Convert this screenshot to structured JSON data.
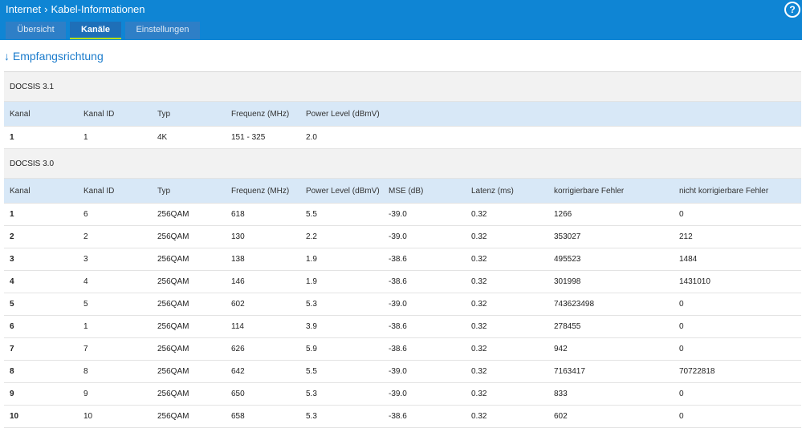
{
  "header": {
    "crumb_root": "Internet",
    "crumb_page": "Kabel-Informationen",
    "help_label": "?"
  },
  "tabs": [
    {
      "label": "Übersicht"
    },
    {
      "label": "Kanäle"
    },
    {
      "label": "Einstellungen"
    }
  ],
  "section_title": "↓ Empfangsrichtung",
  "docsis31": {
    "label": "DOCSIS 3.1",
    "columns": [
      "Kanal",
      "Kanal ID",
      "Typ",
      "Frequenz (MHz)",
      "Power Level (dBmV)"
    ],
    "rows": [
      [
        "1",
        "1",
        "4K",
        "151 - 325",
        "2.0"
      ]
    ]
  },
  "docsis30": {
    "label": "DOCSIS 3.0",
    "columns": [
      "Kanal",
      "Kanal ID",
      "Typ",
      "Frequenz (MHz)",
      "Power Level (dBmV)",
      "MSE (dB)",
      "Latenz (ms)",
      "korrigierbare Fehler",
      "nicht korrigierbare Fehler"
    ],
    "rows": [
      [
        "1",
        "6",
        "256QAM",
        "618",
        "5.5",
        "-39.0",
        "0.32",
        "1266",
        "0"
      ],
      [
        "2",
        "2",
        "256QAM",
        "130",
        "2.2",
        "-39.0",
        "0.32",
        "353027",
        "212"
      ],
      [
        "3",
        "3",
        "256QAM",
        "138",
        "1.9",
        "-38.6",
        "0.32",
        "495523",
        "1484"
      ],
      [
        "4",
        "4",
        "256QAM",
        "146",
        "1.9",
        "-38.6",
        "0.32",
        "301998",
        "1431010"
      ],
      [
        "5",
        "5",
        "256QAM",
        "602",
        "5.3",
        "-39.0",
        "0.32",
        "743623498",
        "0"
      ],
      [
        "6",
        "1",
        "256QAM",
        "114",
        "3.9",
        "-38.6",
        "0.32",
        "278455",
        "0"
      ],
      [
        "7",
        "7",
        "256QAM",
        "626",
        "5.9",
        "-38.6",
        "0.32",
        "942",
        "0"
      ],
      [
        "8",
        "8",
        "256QAM",
        "642",
        "5.5",
        "-39.0",
        "0.32",
        "7163417",
        "70722818"
      ],
      [
        "9",
        "9",
        "256QAM",
        "650",
        "5.3",
        "-39.0",
        "0.32",
        "833",
        "0"
      ],
      [
        "10",
        "10",
        "256QAM",
        "658",
        "5.3",
        "-38.6",
        "0.32",
        "602",
        "0"
      ]
    ]
  }
}
